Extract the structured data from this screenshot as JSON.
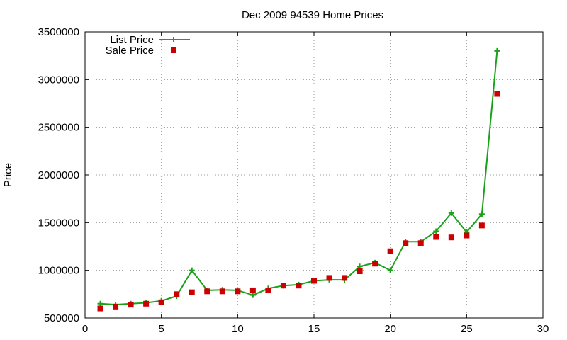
{
  "chart_data": {
    "type": "line",
    "title": "Dec 2009 94539 Home Prices",
    "xlabel": "",
    "ylabel": "Price",
    "xlim": [
      0,
      30
    ],
    "ylim": [
      500000,
      3500000
    ],
    "x_ticks": [
      0,
      5,
      10,
      15,
      20,
      25,
      30
    ],
    "y_ticks": [
      500000,
      1000000,
      1500000,
      2000000,
      2500000,
      3000000,
      3500000
    ],
    "grid": true,
    "legend_position": "top-left",
    "series": [
      {
        "name": "List Price",
        "style": "line-with-plus-markers",
        "color": "#1aa31a",
        "x": [
          1,
          2,
          3,
          4,
          5,
          6,
          7,
          8,
          9,
          10,
          11,
          12,
          13,
          14,
          15,
          16,
          17,
          18,
          19,
          20,
          21,
          22,
          23,
          24,
          25,
          26,
          27
        ],
        "values": [
          650000,
          640000,
          650000,
          660000,
          680000,
          730000,
          1000000,
          790000,
          795000,
          790000,
          740000,
          810000,
          840000,
          850000,
          890000,
          900000,
          900000,
          1040000,
          1080000,
          1000000,
          1300000,
          1300000,
          1410000,
          1600000,
          1400000,
          1590000,
          3300000
        ]
      },
      {
        "name": "Sale Price",
        "style": "square-markers",
        "color": "#cc0000",
        "x": [
          1,
          2,
          3,
          4,
          5,
          6,
          7,
          8,
          9,
          10,
          11,
          12,
          13,
          14,
          15,
          16,
          17,
          18,
          19,
          20,
          21,
          22,
          23,
          24,
          25,
          26,
          27
        ],
        "values": [
          600000,
          620000,
          640000,
          650000,
          665000,
          750000,
          770000,
          780000,
          780000,
          780000,
          790000,
          790000,
          840000,
          840000,
          890000,
          920000,
          920000,
          990000,
          1070000,
          1200000,
          1285000,
          1285000,
          1350000,
          1345000,
          1365000,
          1470000,
          2850000
        ]
      }
    ]
  }
}
